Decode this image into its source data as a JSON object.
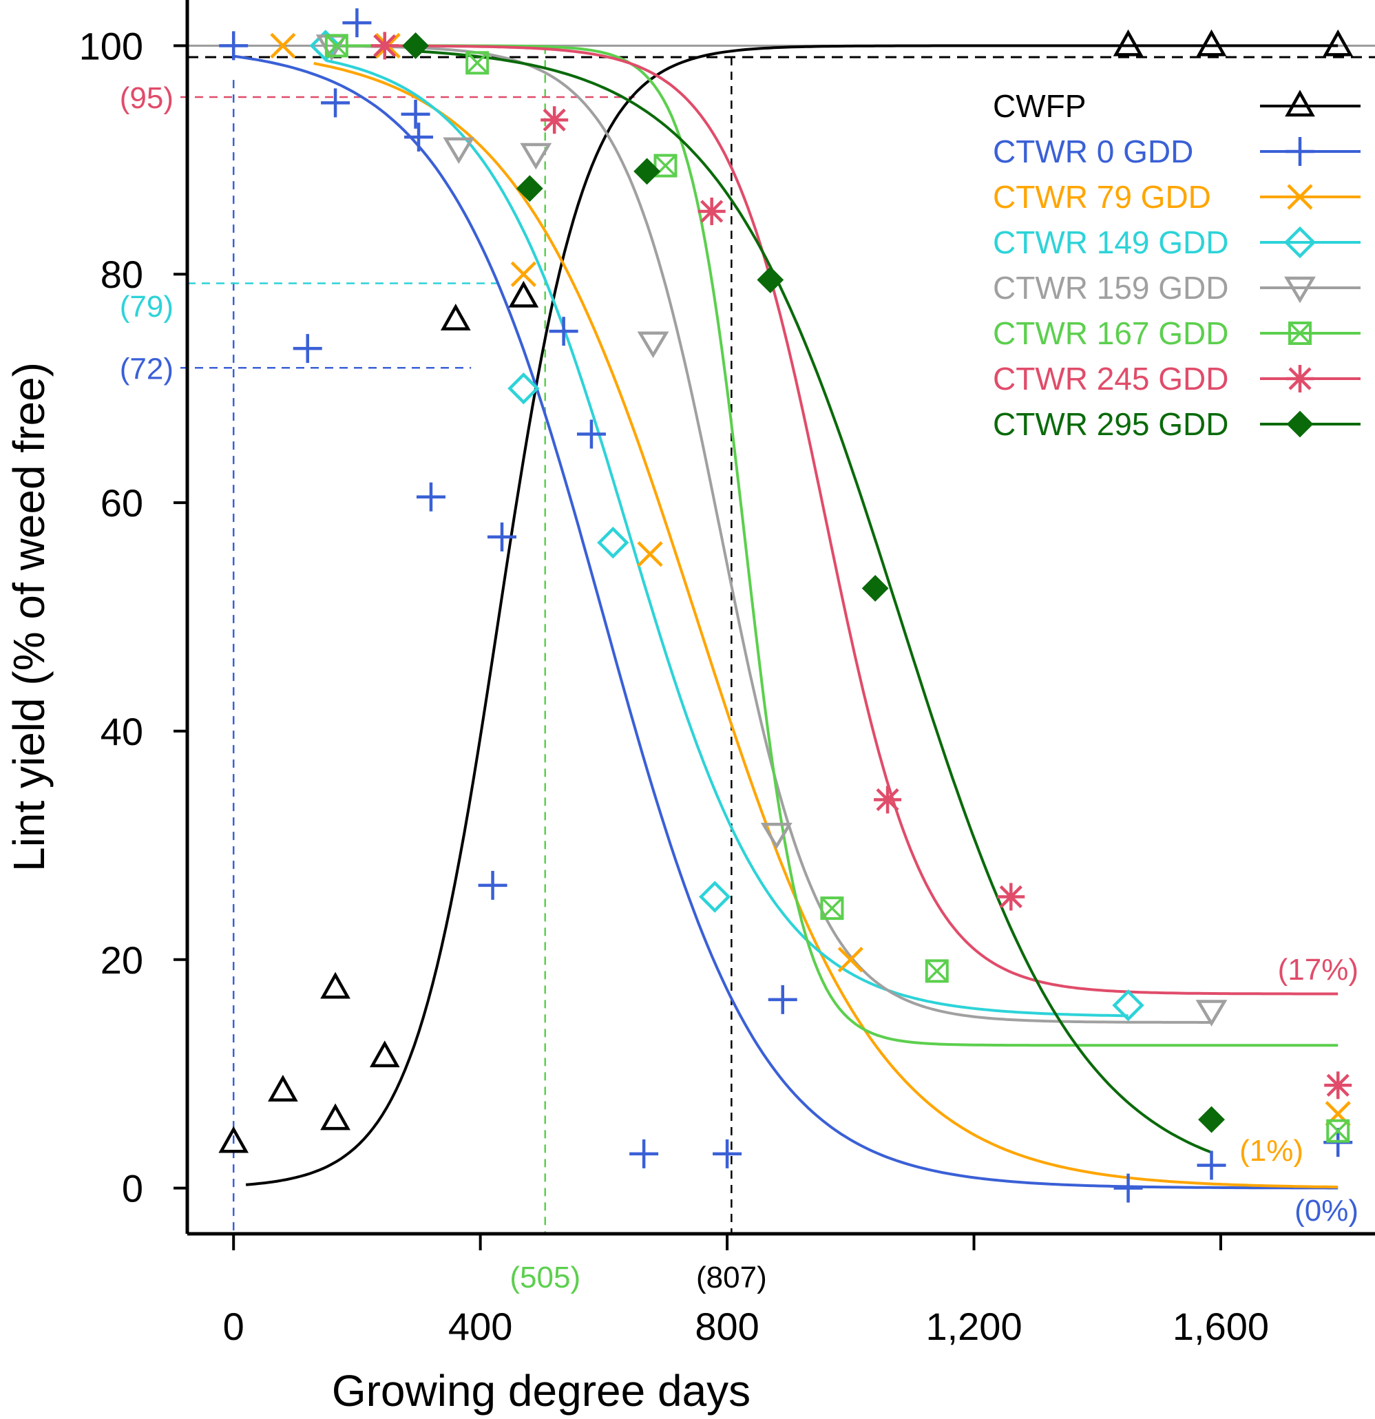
{
  "chart_data": {
    "type": "line",
    "title": "",
    "xlabel": "Growing degree days",
    "ylabel": "Lint yield (% of weed free)",
    "xlim": [
      -75,
      1850
    ],
    "ylim": [
      -4,
      104
    ],
    "x_ticks": [
      0,
      400,
      800,
      1200,
      1600
    ],
    "x_tick_labels": [
      "0",
      "400",
      "800",
      "1,200",
      "1,600"
    ],
    "y_ticks": [
      0,
      20,
      40,
      60,
      80,
      100
    ],
    "y_tick_labels": [
      "0",
      "20",
      "40",
      "60",
      "80",
      "100"
    ],
    "grid": false,
    "legend_position": "top-right",
    "reference_lines": {
      "horizontal_100": 100,
      "horizontal_99": 99,
      "vertical_807": 807,
      "vertical_505": 505,
      "vertical_0": 0,
      "ref_95_y": 95.5,
      "ref_79_y": 79.2,
      "ref_72_y": 71.8
    },
    "annotations": {
      "y95": "(95)",
      "y79": "(79)",
      "y72": "(72)",
      "x505": "(505)",
      "x807": "(807)",
      "end17": "(17%)",
      "end1": "(1%)",
      "end0": "(0%)"
    },
    "series": [
      {
        "name": "CWFP",
        "color": "#000000",
        "marker": "triangle-up",
        "points": [
          [
            0,
            4
          ],
          [
            80,
            8.5
          ],
          [
            165,
            6
          ],
          [
            165,
            17.5
          ],
          [
            245,
            11.5
          ],
          [
            360,
            76
          ],
          [
            470,
            78
          ],
          [
            1450,
            100
          ],
          [
            1585,
            100
          ],
          [
            1790,
            100
          ]
        ],
        "curve": {
          "form": "rising",
          "lower": 0,
          "upper": 100,
          "mid": 430,
          "k": 0.0142,
          "x_start": 20,
          "x_end": 1790
        }
      },
      {
        "name": "CTWR 0 GDD",
        "color": "#3A60D6",
        "marker": "plus",
        "points": [
          [
            0,
            100
          ],
          [
            200,
            102
          ],
          [
            165,
            95
          ],
          [
            295,
            94
          ],
          [
            300,
            92
          ],
          [
            120,
            73.5
          ],
          [
            320,
            60.5
          ],
          [
            435,
            57
          ],
          [
            420,
            26.5
          ],
          [
            535,
            75
          ],
          [
            580,
            66
          ],
          [
            665,
            3
          ],
          [
            800,
            3
          ],
          [
            890,
            16.5
          ],
          [
            1450,
            0
          ],
          [
            1585,
            2
          ],
          [
            1790,
            4
          ]
        ],
        "curve": {
          "form": "falling",
          "lower": 0,
          "upper": 100,
          "mid": 600,
          "k": 0.0078,
          "x_start": 0,
          "x_end": 1790
        }
      },
      {
        "name": "CTWR 79 GDD",
        "color": "#FFA500",
        "marker": "x",
        "points": [
          [
            80,
            100
          ],
          [
            250,
            100
          ],
          [
            470,
            80
          ],
          [
            675,
            55.5
          ],
          [
            1000,
            20
          ],
          [
            1790,
            6.5
          ]
        ],
        "curve": {
          "form": "falling",
          "lower": 0,
          "upper": 100,
          "mid": 750,
          "k": 0.0067,
          "x_start": 130,
          "x_end": 1790
        }
      },
      {
        "name": "CTWR 149 GDD",
        "color": "#2DD3D8",
        "marker": "diamond",
        "points": [
          [
            149,
            100
          ],
          [
            470,
            70
          ],
          [
            615,
            56.5
          ],
          [
            780,
            25.5
          ],
          [
            1450,
            16
          ]
        ],
        "curve": {
          "form": "falling",
          "lower": 15,
          "upper": 100,
          "mid": 640,
          "k": 0.0085,
          "x_start": 150,
          "x_end": 1450
        }
      },
      {
        "name": "CTWR 159 GDD",
        "color": "#A0A0A0",
        "marker": "triangle-down",
        "points": [
          [
            159,
            100
          ],
          [
            365,
            91
          ],
          [
            490,
            90.5
          ],
          [
            680,
            74
          ],
          [
            880,
            31
          ],
          [
            1585,
            15.5
          ]
        ],
        "curve": {
          "form": "falling",
          "lower": 14.5,
          "upper": 100,
          "mid": 790,
          "k": 0.0125,
          "x_start": 160,
          "x_end": 1585
        }
      },
      {
        "name": "CTWR 167 GDD",
        "color": "#5CCF4E",
        "marker": "boxed-x",
        "points": [
          [
            167,
            100
          ],
          [
            395,
            98.5
          ],
          [
            700,
            89.5
          ],
          [
            970,
            24.5
          ],
          [
            1140,
            19
          ],
          [
            1790,
            5
          ]
        ],
        "curve": {
          "form": "falling",
          "lower": 12.5,
          "upper": 100,
          "mid": 830,
          "k": 0.0215,
          "x_start": 160,
          "x_end": 1790
        }
      },
      {
        "name": "CTWR 245 GDD",
        "color": "#E04C6A",
        "marker": "asterisk",
        "points": [
          [
            245,
            100
          ],
          [
            520,
            93.5
          ],
          [
            775,
            85.5
          ],
          [
            1060,
            34
          ],
          [
            1260,
            25.5
          ],
          [
            1790,
            9
          ]
        ],
        "curve": {
          "form": "falling",
          "lower": 17,
          "upper": 100,
          "mid": 960,
          "k": 0.0125,
          "x_start": 250,
          "x_end": 1790
        }
      },
      {
        "name": "CTWR 295 GDD",
        "color": "#0A6A0A",
        "marker": "filled-diamond",
        "points": [
          [
            295,
            100
          ],
          [
            480,
            87.5
          ],
          [
            670,
            89
          ],
          [
            870,
            79.5
          ],
          [
            1040,
            52.5
          ],
          [
            1585,
            6
          ]
        ],
        "curve": {
          "form": "falling",
          "lower": 0,
          "upper": 100,
          "mid": 1080,
          "k": 0.0068,
          "x_start": 295,
          "x_end": 1585
        }
      }
    ]
  }
}
